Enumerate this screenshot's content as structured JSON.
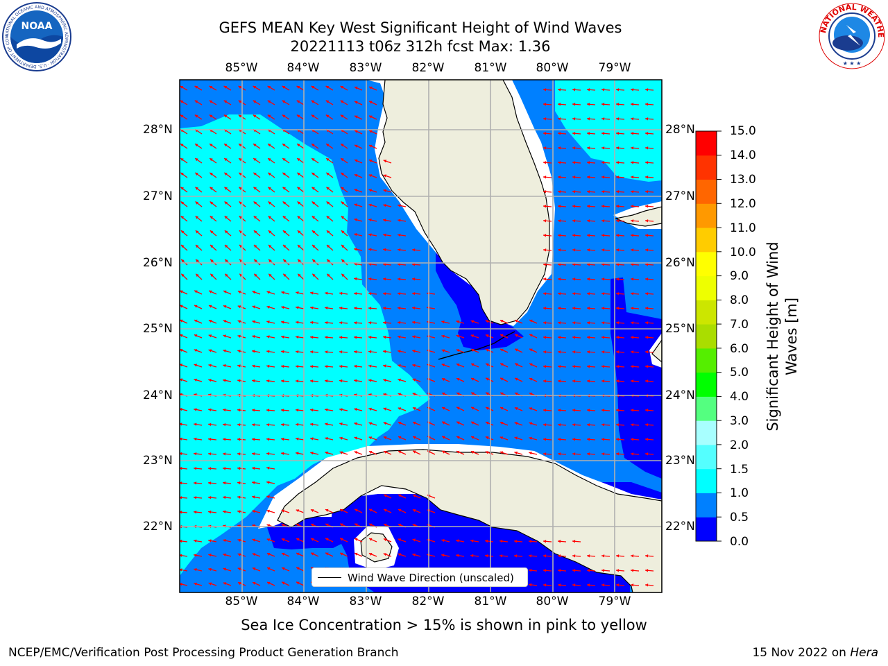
{
  "header": {
    "title_line1": "GEFS MEAN Key West Significant Height of Wind Waves",
    "title_line2": "20221113 t06z 312h fcst   Max: 1.36"
  },
  "logos": {
    "noaa_text": "NOAA",
    "noaa_ring": "NATIONAL OCEANIC AND ATMOSPHERIC ADMINISTRATION · U.S. DEPARTMENT OF COMMERCE",
    "nws_ring": "NATIONAL WEATHER SERVICE"
  },
  "map": {
    "lon_labels": [
      "85°W",
      "84°W",
      "83°W",
      "82°W",
      "81°W",
      "80°W",
      "79°W"
    ],
    "lat_labels": [
      "28°N",
      "27°N",
      "26°N",
      "25°N",
      "24°N",
      "23°N",
      "22°N"
    ],
    "legend_label": "Wind Wave Direction (unscaled)",
    "colors": {
      "land": "#eeeedd",
      "bin_0_0p5": "#0000ff",
      "bin_0p5_1": "#0080ff",
      "bin_1_1p5": "#00ffff",
      "arrow": "#ff0000",
      "grid": "#b0b0b0"
    }
  },
  "colorbar": {
    "title_line1": "Significant Height of Wind",
    "title_line2": "Waves [m]",
    "ticks": [
      "15.0",
      "14.0",
      "13.0",
      "12.0",
      "11.0",
      "10.0",
      "9.0",
      "8.0",
      "7.0",
      "6.0",
      "5.0",
      "4.0",
      "3.0",
      "2.0",
      "1.5",
      "1.0",
      "0.5",
      "0.0"
    ],
    "colors_bottom_to_top": [
      "#0000ff",
      "#0080ff",
      "#00ffff",
      "#54ffff",
      "#a8ffff",
      "#54ff80",
      "#00ff00",
      "#55ee00",
      "#aadd00",
      "#cce600",
      "#eeff00",
      "#ffff00",
      "#ffcc00",
      "#ff9900",
      "#ff6600",
      "#ff3300",
      "#ff0000"
    ]
  },
  "footer": {
    "ice_note": "Sea Ice Concentration > 15% is shown in pink to yellow",
    "credit": "NCEP/EMC/Verification Post Processing Product Generation Branch",
    "date_prefix": "15 Nov 2022 on ",
    "date_machine": "Hera"
  }
}
